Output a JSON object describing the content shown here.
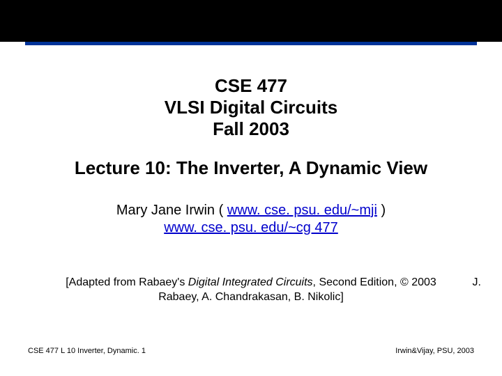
{
  "colors": {
    "topbar": "#000000",
    "rule": "#003399",
    "link": "#0000cc",
    "text": "#000000",
    "background": "#ffffff"
  },
  "header": {
    "line1": "CSE 477",
    "line2": "VLSI Digital Circuits",
    "line3": "Fall 2003"
  },
  "lecture_title": "Lecture 10: The Inverter, A Dynamic View",
  "author": {
    "name_prefix": "Mary Jane Irwin ( ",
    "link1": "www. cse. psu. edu/~mji",
    "name_suffix": " )",
    "link2": "www. cse. psu. edu/~cg 477"
  },
  "attribution": {
    "prefix": "[Adapted from Rabaey's ",
    "italic": "Digital Integrated Circuits",
    "mid": ", Second Edition, © 2003",
    "line2": "Rabaey, A. Chandrakasan, B. Nikolic]",
    "right": "J."
  },
  "footer": {
    "left": "CSE 477 L 10 Inverter, Dynamic. 1",
    "right": "Irwin&Vijay, PSU, 2003"
  }
}
